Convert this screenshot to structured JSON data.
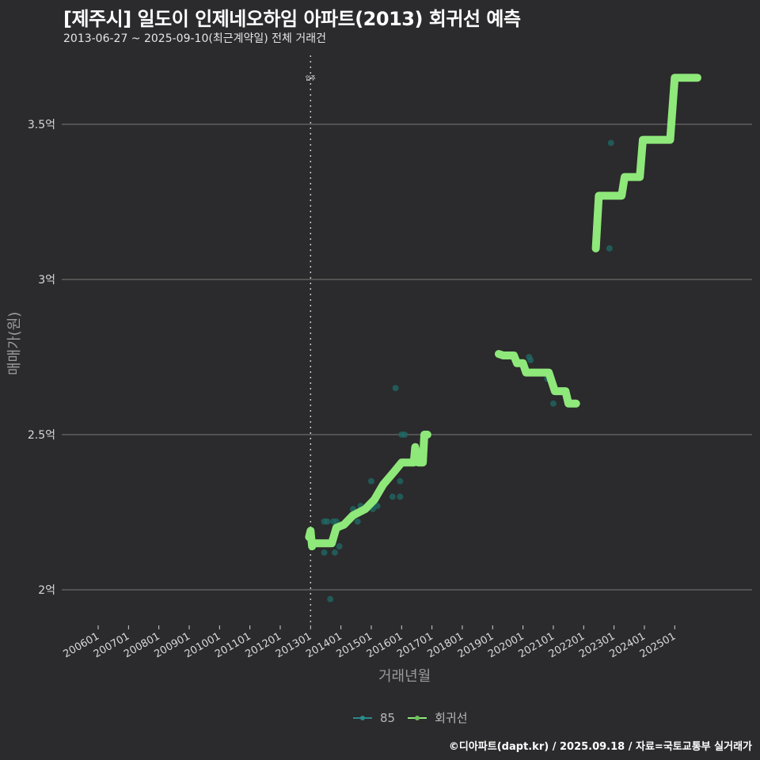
{
  "header": {
    "title": "[제주시] 일도이 인제네오하임 아파트(2013) 회귀선 예측",
    "subtitle": "2013-06-27 ~ 2025-09-10(최근계약일) 전체 거래건"
  },
  "axes": {
    "x_label": "거래년월",
    "y_label": "매매가(원)"
  },
  "legend": {
    "items": [
      {
        "label": "85",
        "color": "#2a8a8a"
      },
      {
        "label": "회귀선",
        "color": "#8ee87a"
      }
    ]
  },
  "annotation": {
    "label": "입주",
    "x": "201301"
  },
  "caption": "©디아파트(dapt.kr) / 2025.09.18 / 자료=국토교통부 실거래가",
  "colors": {
    "background": "#2b2a2c",
    "grid": "#7a7a7a",
    "regression": "#8ee87a",
    "points": "#1f6b66"
  },
  "chart_data": {
    "type": "line",
    "title": "[제주시] 일도이 인제네오하임 아파트(2013) 회귀선 예측",
    "subtitle": "2013-06-27 ~ 2025-09-10(최근계약일) 전체 거래건",
    "xlabel": "거래년월",
    "ylabel": "매매가(원)",
    "x_ticks": [
      "200601",
      "200701",
      "200801",
      "200901",
      "201001",
      "201101",
      "201201",
      "201301",
      "201401",
      "201501",
      "201601",
      "201701",
      "201801",
      "201901",
      "202001",
      "202101",
      "202201",
      "202301",
      "202401",
      "202501"
    ],
    "y_ticks": [
      "2억",
      "2.5억",
      "3억",
      "3.5억"
    ],
    "y_tick_values": [
      2.0,
      2.5,
      3.0,
      3.5
    ],
    "ylim": [
      1.89,
      3.72
    ],
    "grid": true,
    "legend_position": "bottom",
    "vline": {
      "x": "201301",
      "label": "입주",
      "style": "dotted"
    },
    "series": [
      {
        "name": "85",
        "kind": "scatter",
        "points": [
          {
            "x": 2013.45,
            "y": 2.12
          },
          {
            "x": 2013.45,
            "y": 2.22
          },
          {
            "x": 2013.55,
            "y": 2.22
          },
          {
            "x": 2013.65,
            "y": 1.97
          },
          {
            "x": 2013.75,
            "y": 2.22
          },
          {
            "x": 2013.8,
            "y": 2.12
          },
          {
            "x": 2013.85,
            "y": 2.22
          },
          {
            "x": 2013.95,
            "y": 2.14
          },
          {
            "x": 2014.4,
            "y": 2.26
          },
          {
            "x": 2014.55,
            "y": 2.22
          },
          {
            "x": 2014.65,
            "y": 2.27
          },
          {
            "x": 2014.75,
            "y": 2.26
          },
          {
            "x": 2015.0,
            "y": 2.35
          },
          {
            "x": 2015.05,
            "y": 2.26
          },
          {
            "x": 2015.2,
            "y": 2.27
          },
          {
            "x": 2015.7,
            "y": 2.3
          },
          {
            "x": 2015.8,
            "y": 2.65
          },
          {
            "x": 2015.95,
            "y": 2.35
          },
          {
            "x": 2015.95,
            "y": 2.3
          },
          {
            "x": 2016.0,
            "y": 2.5
          },
          {
            "x": 2016.1,
            "y": 2.5
          },
          {
            "x": 2020.2,
            "y": 2.75
          },
          {
            "x": 2020.25,
            "y": 2.74
          },
          {
            "x": 2020.8,
            "y": 2.68
          },
          {
            "x": 2021.0,
            "y": 2.6
          },
          {
            "x": 2022.85,
            "y": 3.1
          },
          {
            "x": 2022.9,
            "y": 3.44
          }
        ]
      },
      {
        "name": "회귀선",
        "kind": "line",
        "segments": [
          [
            {
              "x": 2012.95,
              "y": 2.17
            },
            {
              "x": 2013.0,
              "y": 2.19
            },
            {
              "x": 2013.05,
              "y": 2.14
            },
            {
              "x": 2013.1,
              "y": 2.15
            },
            {
              "x": 2013.7,
              "y": 2.15
            },
            {
              "x": 2013.85,
              "y": 2.2
            },
            {
              "x": 2014.1,
              "y": 2.21
            },
            {
              "x": 2014.4,
              "y": 2.24
            },
            {
              "x": 2014.8,
              "y": 2.26
            },
            {
              "x": 2015.1,
              "y": 2.29
            },
            {
              "x": 2015.4,
              "y": 2.34
            },
            {
              "x": 2015.75,
              "y": 2.38
            },
            {
              "x": 2016.0,
              "y": 2.41
            },
            {
              "x": 2016.4,
              "y": 2.41
            },
            {
              "x": 2016.45,
              "y": 2.46
            },
            {
              "x": 2016.55,
              "y": 2.41
            },
            {
              "x": 2016.7,
              "y": 2.41
            },
            {
              "x": 2016.75,
              "y": 2.5
            },
            {
              "x": 2016.85,
              "y": 2.5
            }
          ],
          [
            {
              "x": 2019.2,
              "y": 2.76
            },
            {
              "x": 2019.35,
              "y": 2.755
            },
            {
              "x": 2019.7,
              "y": 2.755
            },
            {
              "x": 2019.8,
              "y": 2.73
            },
            {
              "x": 2020.0,
              "y": 2.73
            },
            {
              "x": 2020.1,
              "y": 2.7
            },
            {
              "x": 2020.85,
              "y": 2.7
            },
            {
              "x": 2021.05,
              "y": 2.64
            },
            {
              "x": 2021.4,
              "y": 2.64
            },
            {
              "x": 2021.5,
              "y": 2.6
            },
            {
              "x": 2021.75,
              "y": 2.6
            }
          ],
          [
            {
              "x": 2022.4,
              "y": 3.1
            },
            {
              "x": 2022.5,
              "y": 3.27
            },
            {
              "x": 2023.25,
              "y": 3.27
            },
            {
              "x": 2023.35,
              "y": 3.33
            },
            {
              "x": 2023.85,
              "y": 3.33
            },
            {
              "x": 2023.95,
              "y": 3.45
            },
            {
              "x": 2024.85,
              "y": 3.45
            },
            {
              "x": 2025.0,
              "y": 3.65
            },
            {
              "x": 2025.75,
              "y": 3.65
            }
          ]
        ]
      }
    ]
  }
}
